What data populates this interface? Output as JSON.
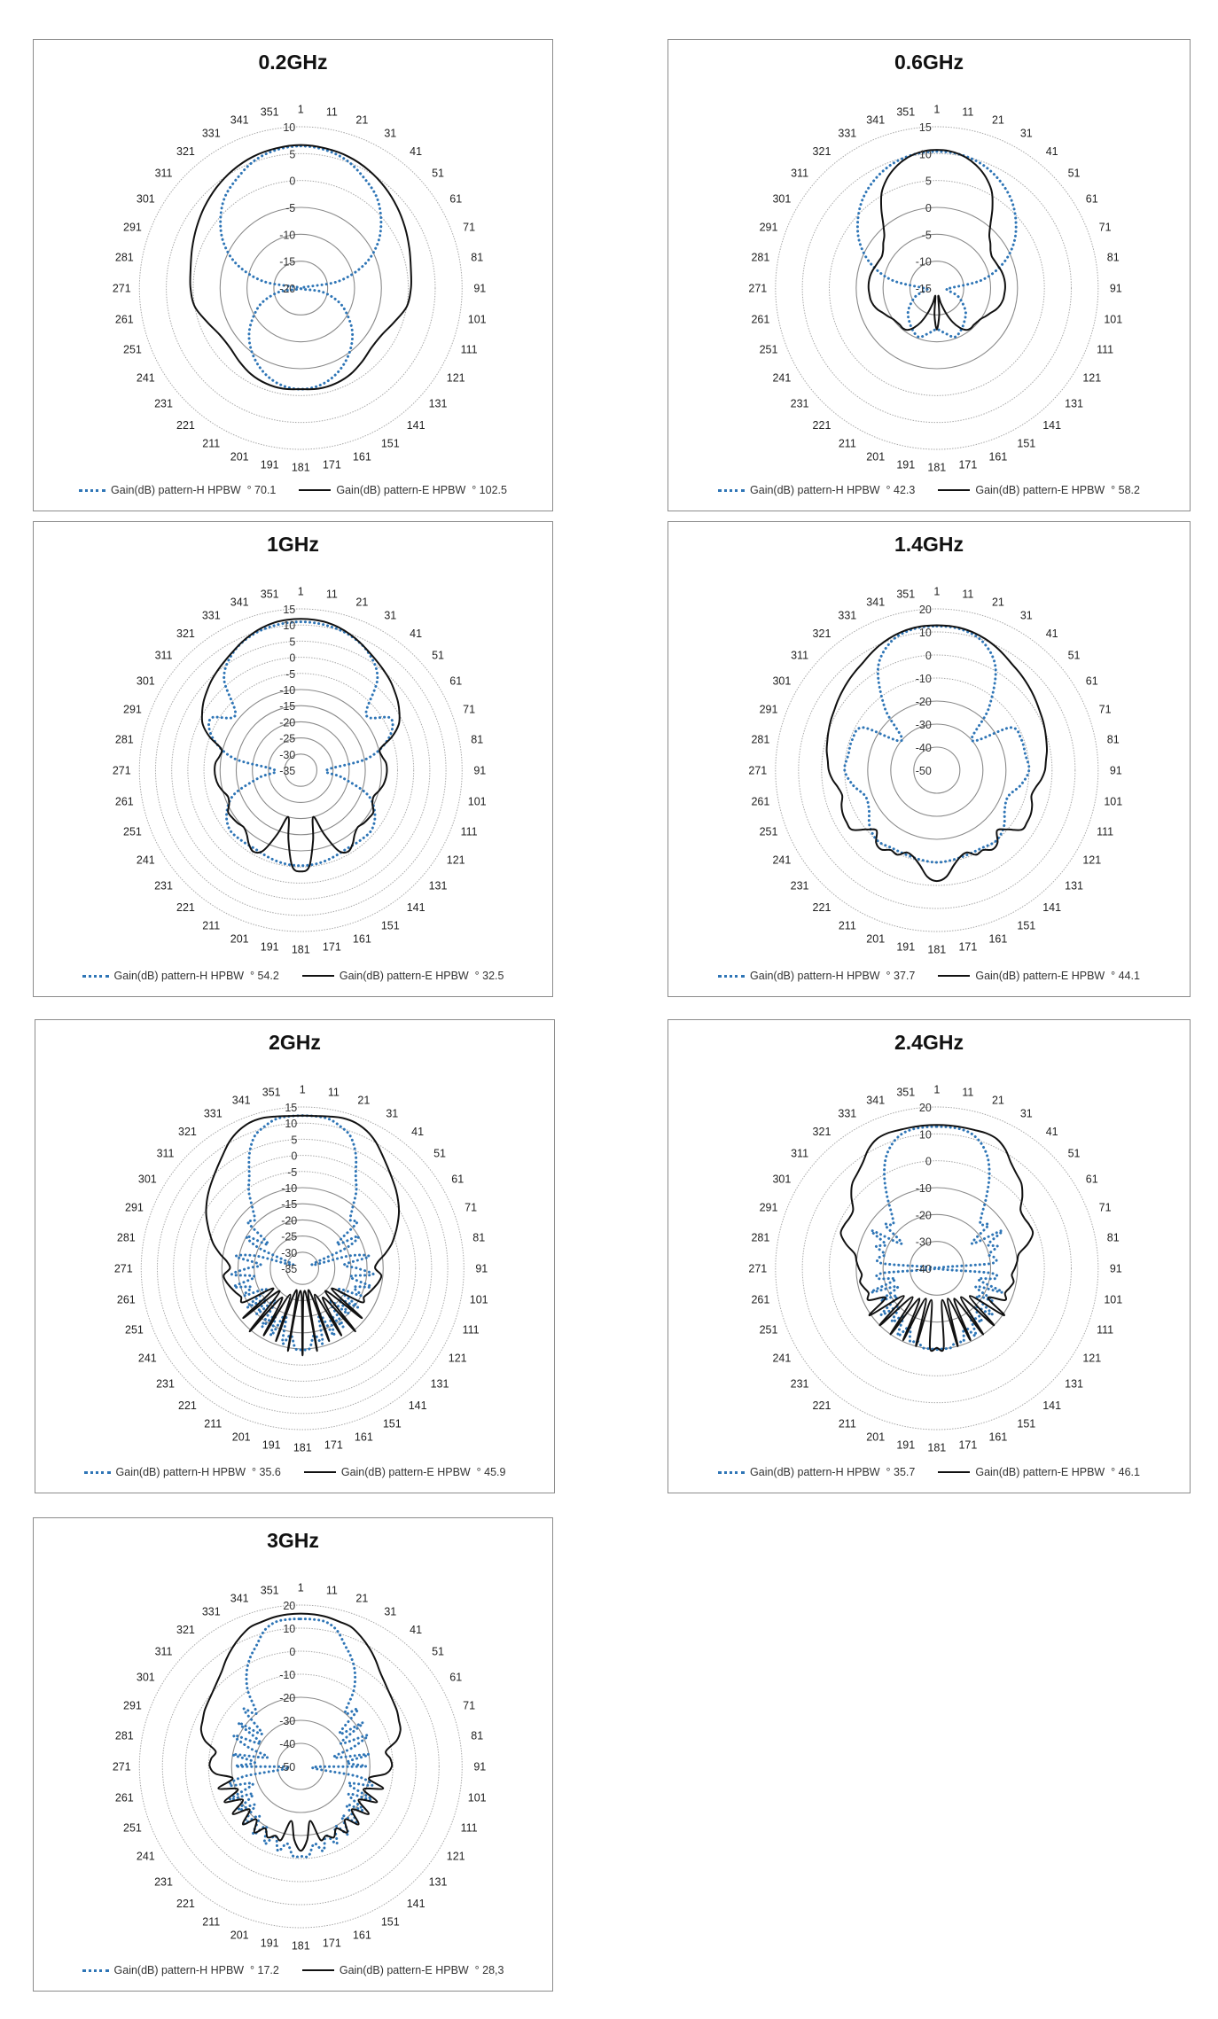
{
  "colors": {
    "h_series": "#2e75b6",
    "e_series": "#111111",
    "grid": "#9a9a9a"
  },
  "polar_axis": {
    "angle_labels": [
      "1",
      "11",
      "21",
      "31",
      "41",
      "51",
      "61",
      "71",
      "81",
      "91",
      "101",
      "111",
      "121",
      "131",
      "141",
      "151",
      "161",
      "171",
      "181",
      "191",
      "201",
      "211",
      "221",
      "231",
      "241",
      "251",
      "261",
      "271",
      "281",
      "291",
      "301",
      "311",
      "321",
      "331",
      "341",
      "351"
    ]
  },
  "chart_data": [
    {
      "type": "line",
      "subtype": "polar-radar",
      "title": "0.2GHz",
      "r_range": [
        -20,
        10
      ],
      "r_ticks": [
        "10",
        "5",
        "0",
        "-5",
        "-10",
        "-15",
        "-20"
      ],
      "r_tick_values": [
        10,
        5,
        0,
        -5,
        -10,
        -15,
        -20
      ],
      "symmetric_about_1_181": true,
      "legend": "bottom",
      "series": [
        {
          "name": "Gain(dB) pattern-H HPBW  ° 70.1",
          "style": "dotted",
          "angle_start": 1,
          "angle_step": 10,
          "values": [
            6.4,
            6.1,
            5.2,
            3.6,
            2.0,
            -0.5,
            -3.5,
            -7.5,
            -13,
            -20,
            -16,
            -12.5,
            -10,
            -7.5,
            -5.5,
            -3.8,
            -2.4,
            -1.5,
            -1.2
          ]
        },
        {
          "name": "Gain(dB) pattern-E HPBW  ° 102.5",
          "style": "solid",
          "angle_start": 1,
          "angle_step": 10,
          "values": [
            6.6,
            6.4,
            6.0,
            5.3,
            4.4,
            3.4,
            2.4,
            1.5,
            0.8,
            0.5,
            0,
            -1.5,
            -2.6,
            -2.8,
            -2.2,
            -1.5,
            -1.1,
            -1.0,
            -1.2
          ]
        }
      ]
    },
    {
      "type": "line",
      "subtype": "polar-radar",
      "title": "0.6GHz",
      "r_range": [
        -15,
        15
      ],
      "r_ticks": [
        "15",
        "10",
        "5",
        "0",
        "-5",
        "-10",
        "-15"
      ],
      "r_tick_values": [
        15,
        10,
        5,
        0,
        -5,
        -10,
        -15
      ],
      "symmetric_about_1_181": true,
      "legend": "bottom",
      "series": [
        {
          "name": "Gain(dB) pattern-H HPBW  ° 42.3",
          "style": "dotted",
          "angle_start": 1,
          "angle_step": 10,
          "values": [
            10.4,
            10.2,
            9.5,
            8.2,
            6.5,
            4.2,
            1.5,
            -2,
            -6.5,
            -12.5,
            -13,
            -11,
            -9.5,
            -8,
            -7,
            -6,
            -5.3,
            -6.5,
            -7.3
          ]
        },
        {
          "name": "Gain(dB) pattern-E HPBW  ° 58.2",
          "style": "solid",
          "angle_start": 1,
          "angle_step": 5,
          "values": [
            10.7,
            10.6,
            10.2,
            9.5,
            8.5,
            7.2,
            5.5,
            3,
            0.5,
            -1.2,
            -2,
            -2.8,
            -3.2,
            -3.1,
            -2.9,
            -2.6,
            -2.4,
            -2.3,
            -2.3,
            -2.4,
            -2.5,
            -2.8,
            -3.3,
            -4,
            -4.5,
            -5,
            -5.2,
            -5.3,
            -5.2,
            -5.5,
            -6.5,
            -8,
            -10,
            -12,
            -13.5,
            -10,
            -7.3
          ]
        }
      ]
    },
    {
      "type": "line",
      "subtype": "polar-radar",
      "title": "1GHz",
      "r_range": [
        -35,
        15
      ],
      "r_ticks": [
        "15",
        "10",
        "5",
        "0",
        "-5",
        "-10",
        "-15",
        "-20",
        "-25",
        "-30",
        "-35"
      ],
      "r_tick_values": [
        15,
        10,
        5,
        0,
        -5,
        -10,
        -15,
        -20,
        -25,
        -30,
        -35
      ],
      "symmetric_about_1_181": true,
      "legend": "bottom",
      "series": [
        {
          "name": "Gain(dB) pattern-H HPBW  ° 54.2",
          "style": "dotted",
          "angle_start": 1,
          "angle_step": 10,
          "values": [
            11,
            10.6,
            9.5,
            7,
            2,
            -8.5,
            -2.8,
            -6,
            -14,
            -27,
            -22,
            -13,
            -8.5,
            -6.3,
            -6.5,
            -6.8,
            -6.2,
            -5.6,
            -5.4
          ]
        },
        {
          "name": "Gain(dB) pattern-E HPBW  ° 32.5",
          "style": "solid",
          "angle_start": 1,
          "angle_step": 5,
          "values": [
            11.9,
            11.8,
            11.5,
            10.8,
            9.8,
            8.6,
            7.3,
            6.2,
            5.2,
            4.2,
            3,
            1.8,
            0.3,
            -1.5,
            -5,
            -9.5,
            -9.5,
            -8.5,
            -8.3,
            -8.5,
            -9,
            -10,
            -11,
            -10.5,
            -9,
            -9.2,
            -9.5,
            -10,
            -9,
            -7,
            -5.8,
            -7.5,
            -14,
            -20,
            -13,
            -5,
            -3.6
          ]
        }
      ]
    },
    {
      "type": "line",
      "subtype": "polar-radar",
      "title": "1.4GHz",
      "r_range": [
        -50,
        20
      ],
      "r_ticks": [
        "20",
        "10",
        "0",
        "-10",
        "-20",
        "-30",
        "-40",
        "-50"
      ],
      "r_tick_values": [
        20,
        10,
        0,
        -10,
        -20,
        -30,
        -40,
        -50
      ],
      "symmetric_about_1_181": true,
      "legend": "bottom",
      "series": [
        {
          "name": "Gain(dB) pattern-H HPBW  ° 37.7",
          "style": "dotted",
          "angle_start": 1,
          "angle_step": 10,
          "values": [
            12.5,
            12,
            9,
            1,
            -15,
            -30,
            -13,
            -11,
            -11,
            -10,
            -13,
            -17,
            -16,
            -12,
            -10,
            -11,
            -11,
            -10.5,
            -10
          ]
        },
        {
          "name": "Gain(dB) pattern-E HPBW  ° 44.1",
          "style": "solid",
          "angle_start": 1,
          "angle_step": 5,
          "values": [
            12.9,
            12.8,
            12.5,
            11.8,
            10.8,
            9.5,
            8,
            6.5,
            5.5,
            4.5,
            3.5,
            2.5,
            1.5,
            0.8,
            0,
            -0.8,
            -1.5,
            -2.5,
            -3.1,
            -4.5,
            -6.5,
            -7.5,
            -6,
            -5,
            -4.8,
            -5,
            -10,
            -13,
            -9,
            -8,
            -10,
            -9.5,
            -12,
            -11,
            -8,
            -3.5,
            -1.9
          ]
        }
      ]
    },
    {
      "type": "line",
      "subtype": "polar-radar",
      "title": "2GHz",
      "r_range": [
        -35,
        15
      ],
      "r_ticks": [
        "15",
        "10",
        "5",
        "0",
        "-5",
        "-10",
        "-15",
        "-20",
        "-25",
        "-30",
        "-35"
      ],
      "r_tick_values": [
        15,
        10,
        5,
        0,
        -5,
        -10,
        -15,
        -20,
        -25,
        -30,
        -35
      ],
      "symmetric_about_1_181": true,
      "legend": "bottom",
      "series": [
        {
          "name": "Gain(dB) pattern-H HPBW  ° 35.6",
          "style": "dotted",
          "angle_start": 1,
          "angle_step": 5,
          "values": [
            12.3,
            12.3,
            12,
            10.5,
            8.5,
            4,
            -2,
            -6,
            -11,
            -14,
            -13,
            -22,
            -15,
            -20,
            -32,
            -20,
            -14,
            -22,
            -18,
            -13,
            -20,
            -13,
            -18,
            -15,
            -22,
            -14,
            -20,
            -15,
            -22,
            -13,
            -18,
            -12,
            -20,
            -11,
            -14,
            -10,
            -9.8
          ]
        },
        {
          "name": "Gain(dB) pattern-E HPBW  ° 45.9",
          "style": "solid",
          "angle_start": 1,
          "angle_step": 5,
          "values": [
            12.3,
            12.4,
            12.8,
            13.2,
            13,
            12,
            10.3,
            8,
            6,
            4.3,
            2.8,
            1.2,
            -0.5,
            -2.5,
            -4.5,
            -6.5,
            -9,
            -11.5,
            -12.5,
            -10.5,
            -11,
            -12,
            -13,
            -14,
            -14,
            -24,
            -11,
            -25,
            -9.5,
            -24,
            -11,
            -26,
            -11,
            -28,
            -9,
            -28,
            -8
          ]
        }
      ]
    },
    {
      "type": "line",
      "subtype": "polar-radar",
      "title": "2.4GHz",
      "r_range": [
        -40,
        20
      ],
      "r_ticks": [
        "20",
        "10",
        "0",
        "-10",
        "-20",
        "-30",
        "-40"
      ],
      "r_tick_values": [
        20,
        10,
        0,
        -10,
        -20,
        -30,
        -40
      ],
      "symmetric_about_1_181": true,
      "legend": "bottom",
      "series": [
        {
          "name": "Gain(dB) pattern-H HPBW  ° 35.7",
          "style": "dotted",
          "angle_start": 1,
          "angle_step": 5,
          "values": [
            12.7,
            12.7,
            12.5,
            11.5,
            9,
            5,
            -1,
            -8,
            -14,
            -17,
            -15,
            -24,
            -12,
            -19,
            -16,
            -20,
            -18,
            -20,
            -40,
            -20,
            -18,
            -24,
            -14,
            -24,
            -16,
            -22,
            -13,
            -20,
            -14,
            -18,
            -11,
            -16,
            -11,
            -12,
            -10,
            -10,
            -9.8
          ]
        },
        {
          "name": "Gain(dB) pattern-E HPBW  ° 46.1",
          "style": "solid",
          "angle_start": 1,
          "angle_step": 5,
          "values": [
            13.3,
            13.3,
            13.3,
            13.3,
            13.5,
            13,
            11,
            8,
            6,
            4.5,
            1.5,
            -2,
            -2.5,
            -2,
            -2,
            -5,
            -9,
            -10,
            -11,
            -12,
            -11,
            -12,
            -13,
            -12,
            -18,
            -9.5,
            -24,
            -10,
            -26,
            -10,
            -27,
            -10.5,
            -28,
            -10,
            -28,
            -10.5,
            -10.4
          ]
        }
      ]
    },
    {
      "type": "line",
      "subtype": "polar-radar",
      "title": "3GHz",
      "r_range": [
        -50,
        20
      ],
      "r_ticks": [
        "20",
        "10",
        "0",
        "-10",
        "-20",
        "-30",
        "-40",
        "-50"
      ],
      "r_tick_values": [
        20,
        10,
        0,
        -10,
        -20,
        -30,
        -40,
        -50
      ],
      "symmetric_about_1_181": true,
      "legend": "bottom",
      "series": [
        {
          "name": "Gain(dB) pattern-H HPBW  ° 17.2",
          "style": "dotted",
          "angle_start": 1,
          "angle_step": 5,
          "values": [
            14,
            14,
            13.6,
            11,
            6,
            2,
            -3,
            -10,
            -20,
            -15,
            -28,
            -17,
            -30,
            -18,
            -26,
            -35,
            -20,
            -30,
            -22,
            -45,
            -25,
            -18,
            -28,
            -16,
            -26,
            -17,
            -24,
            -15,
            -22,
            -14,
            -20,
            -13,
            -18,
            -12,
            -16,
            -11,
            -11
          ]
        },
        {
          "name": "Gain(dB) pattern-E HPBW  ° 28,3",
          "style": "solid",
          "angle_start": 1,
          "angle_step": 5,
          "values": [
            16.3,
            16.2,
            15.8,
            15,
            14.3,
            12,
            9.4,
            6.5,
            3.5,
            1.5,
            0,
            -1,
            -1.8,
            -3,
            -4,
            -7,
            -12.5,
            -11,
            -10.5,
            -13,
            -20,
            -13,
            -21,
            -13.5,
            -21,
            -14,
            -21,
            -14.5,
            -20,
            -15,
            -19,
            -16,
            -18,
            -17,
            -26,
            -18,
            -13.4
          ]
        }
      ]
    }
  ]
}
